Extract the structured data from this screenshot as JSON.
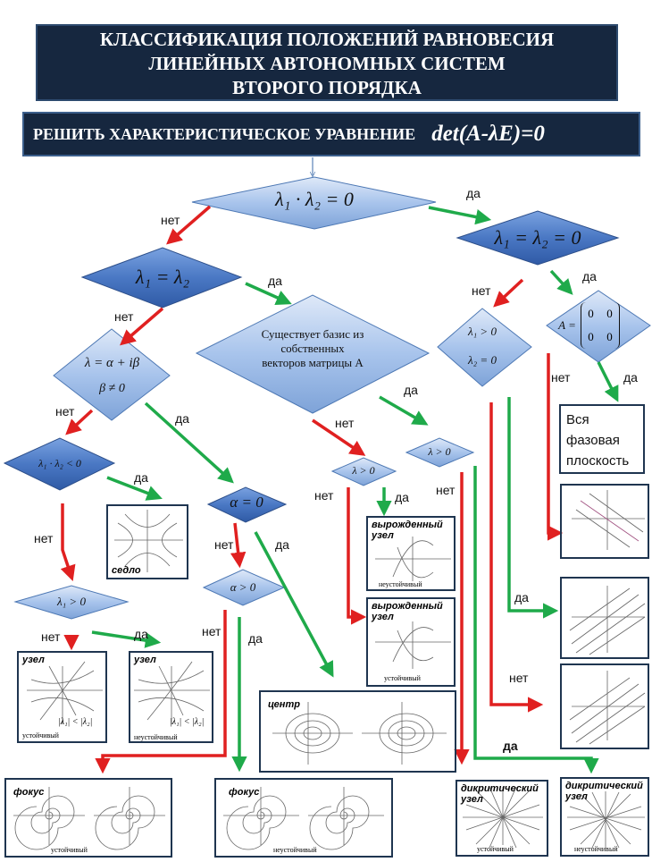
{
  "title": {
    "line1": "КЛАССИФИКАЦИЯ ПОЛОЖЕНИЙ РАВНОВЕСИЯ",
    "line2": "ЛИНЕЙНЫХ АВТОНОМНЫХ СИСТЕМ",
    "line3": "ВТОРОГО ПОРЯДКА"
  },
  "task": {
    "label": "РЕШИТЬ ХАРАКТЕРИСТИЧЕСКОЕ   УРАВНЕНИЕ",
    "equation": "det(A-λE)=0"
  },
  "diamonds": {
    "d1": "λ₁ · λ₂ = 0",
    "d2": "λ₁ = λ₂",
    "d3": "λ₁ = λ₂ = 0",
    "d4a": "λ = α + iβ",
    "d4b": "β ≠ 0",
    "d5a": "Существует базис из",
    "d5b": "собственных",
    "d5c": "векторов матрицы A",
    "d6a": "λ₁ > 0",
    "d6b": "λ₂ = 0",
    "d7": "A =",
    "d7m": [
      "0",
      "0",
      "0",
      "0"
    ],
    "d8": "λ₁ · λ₂ < 0",
    "d9": "α = 0",
    "d10": "λ > 0",
    "d11": "λ > 0",
    "d12": "λ₁ > 0",
    "d13": "α > 0"
  },
  "labels": {
    "yes": "да",
    "no": "нет"
  },
  "phase_text": {
    "line1": "Вся",
    "line2": "фазовая",
    "line3": "плоскость"
  },
  "boxes": {
    "saddle": {
      "title": "седло"
    },
    "node1": {
      "title": "узел",
      "cond": "|λ₁| < |λ₂|",
      "caption": "устойчивый"
    },
    "node2": {
      "title": "узел",
      "cond": "|λ₁| < |λ₂|",
      "caption": "неустойчивый"
    },
    "degen1": {
      "title1": "вырожденный",
      "title2": "узел",
      "caption": "неустойчивый"
    },
    "degen2": {
      "title1": "вырожденный",
      "title2": "узел",
      "caption": "устойчивый"
    },
    "center": {
      "title": "центр"
    },
    "focus1": {
      "title": "фокус",
      "caption": "устойчивый"
    },
    "focus2": {
      "title": "фокус",
      "caption": "неустойчивый"
    },
    "dicrit1": {
      "title1": "дикритический",
      "title2": "узел",
      "caption": "устойчивый"
    },
    "dicrit2": {
      "title1": "дикритический",
      "title2": "узел",
      "caption": "неустойчивый"
    }
  },
  "colors": {
    "red": "#e02020",
    "green": "#1faa4a",
    "navy": "#16273f",
    "diamond_light": "#a8c4ec",
    "diamond_dark": "#4a78c4"
  }
}
